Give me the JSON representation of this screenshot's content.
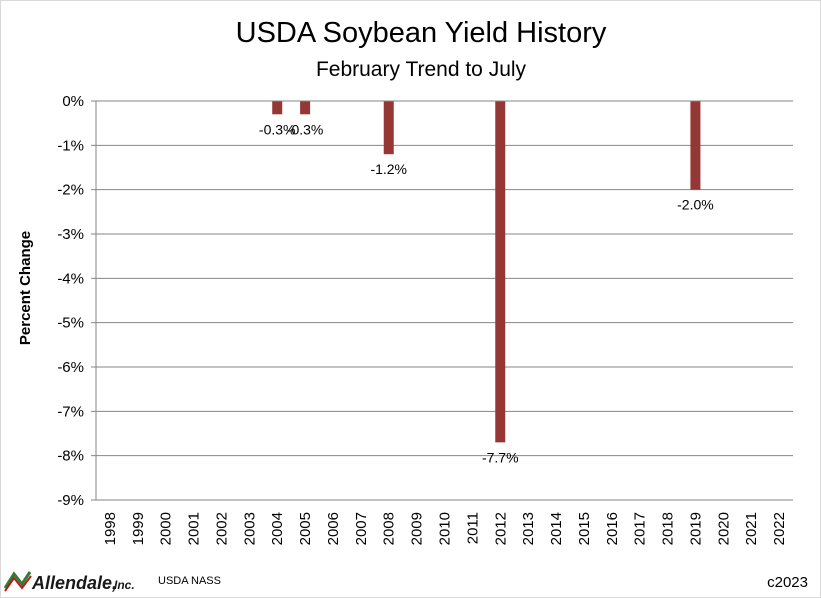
{
  "chart_data": {
    "type": "bar",
    "title": "USDA Soybean Yield History",
    "subtitle": "February Trend to July",
    "xlabel": "",
    "ylabel": "Percent Change",
    "ylim": [
      -9,
      0
    ],
    "yticks": [
      0,
      -1,
      -2,
      -3,
      -4,
      -5,
      -6,
      -7,
      -8,
      -9
    ],
    "ytick_labels": [
      "0%",
      "-1%",
      "-2%",
      "-3%",
      "-4%",
      "-5%",
      "-6%",
      "-7%",
      "-8%",
      "-9%"
    ],
    "grid": true,
    "bar_color": "#953735",
    "categories": [
      "1998",
      "1999",
      "2000",
      "2001",
      "2002",
      "2003",
      "2004",
      "2005",
      "2006",
      "2007",
      "2008",
      "2009",
      "2010",
      "2011",
      "2012",
      "2013",
      "2014",
      "2015",
      "2016",
      "2017",
      "2018",
      "2019",
      "2020",
      "2021",
      "2022"
    ],
    "values": [
      0,
      0,
      0,
      0,
      0,
      0,
      -0.3,
      -0.3,
      0,
      0,
      -1.2,
      0,
      0,
      0,
      -7.7,
      0,
      0,
      0,
      0,
      0,
      0,
      -2.0,
      0,
      0,
      0
    ],
    "data_labels": {
      "2004": "-0.3%",
      "2005": "-0.3%",
      "2008": "-1.2%",
      "2012": "-7.7%",
      "2019": "-2.0%"
    }
  },
  "footer": {
    "logo_name": "Allendale,",
    "logo_suffix": "Inc.",
    "logo_icon": "allendale-chevron-logo",
    "logo_colors": [
      "#2e7d32",
      "#b71c1c"
    ],
    "source": "USDA NASS",
    "copyright": "c2023"
  }
}
